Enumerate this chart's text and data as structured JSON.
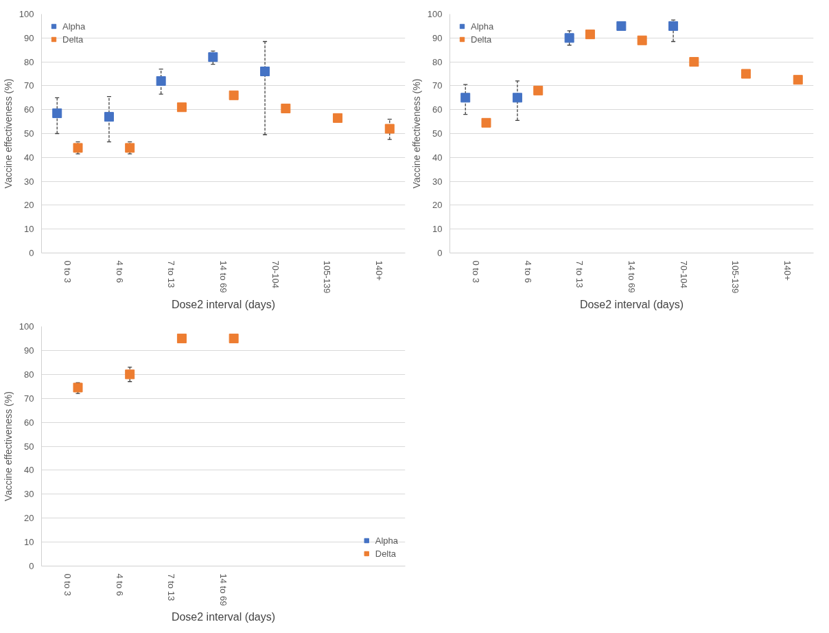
{
  "chart_data": [
    {
      "type": "scatter",
      "xlabel": "Dose2 interval (days)",
      "ylabel": "Vaccine effectiveness (%)",
      "categories": [
        "0 to 3",
        "4 to 6",
        "7 to 13",
        "14 to 69",
        "70-104",
        "105-139",
        "140+"
      ],
      "ylim": [
        0,
        100
      ],
      "yticks": [
        0,
        10,
        20,
        30,
        40,
        50,
        60,
        70,
        80,
        90,
        100
      ],
      "grid": "y",
      "legend": "top left",
      "marker": "square",
      "series": [
        {
          "name": "Alpha",
          "color": "#4472c4",
          "values": [
            58.5,
            57,
            72,
            82,
            76,
            null,
            null
          ],
          "errors": [
            [
              50,
              65
            ],
            [
              46.5,
              65.5
            ],
            [
              66.5,
              77
            ],
            [
              79,
              84.5
            ],
            [
              49.5,
              88.5
            ],
            null,
            null
          ]
        },
        {
          "name": "Delta",
          "color": "#ed7d31",
          "values": [
            44,
            44,
            61,
            66,
            60.5,
            56.5,
            52
          ],
          "errors": [
            [
              41.5,
              46.5
            ],
            [
              41.5,
              46.5
            ],
            null,
            null,
            null,
            null,
            [
              47.5,
              56
            ]
          ]
        }
      ]
    },
    {
      "type": "scatter",
      "xlabel": "Dose2 interval (days)",
      "ylabel": "Vaccine effectiveness (%)",
      "categories": [
        "0 to 3",
        "4 to 6",
        "7 to 13",
        "14 to 69",
        "70-104",
        "105-139",
        "140+"
      ],
      "ylim": [
        0,
        100
      ],
      "yticks": [
        0,
        10,
        20,
        30,
        40,
        50,
        60,
        70,
        80,
        90,
        100
      ],
      "grid": "y",
      "legend": "top left",
      "marker": "square",
      "series": [
        {
          "name": "Alpha",
          "color": "#4472c4",
          "values": [
            65,
            65,
            90,
            95,
            95,
            null,
            null
          ],
          "errors": [
            [
              58,
              70.5
            ],
            [
              55.5,
              72
            ],
            [
              87,
              93
            ],
            null,
            [
              88.5,
              97.5
            ],
            null,
            null
          ]
        },
        {
          "name": "Delta",
          "color": "#ed7d31",
          "values": [
            54.5,
            68,
            91.5,
            89,
            80,
            75,
            72.5
          ]
        }
      ]
    },
    {
      "type": "scatter",
      "xlabel": "Dose2 interval (days)",
      "ylabel": "Vaccine effectiveness (%)",
      "categories": [
        "0 to 3",
        "4 to 6",
        "7 to 13",
        "14 to 69",
        null,
        null,
        null
      ],
      "ylim": [
        0,
        100
      ],
      "yticks": [
        0,
        10,
        20,
        30,
        40,
        50,
        60,
        70,
        80,
        90,
        100
      ],
      "grid": "y",
      "legend": "bottom right",
      "marker": "square",
      "series": [
        {
          "name": "Alpha",
          "color": "#4472c4",
          "values": [
            null,
            null,
            null,
            null,
            null,
            null,
            null
          ]
        },
        {
          "name": "Delta",
          "color": "#ed7d31",
          "values": [
            74.5,
            80,
            95,
            95,
            null,
            null,
            null
          ],
          "errors": [
            [
              72,
              76.5
            ],
            [
              77,
              83
            ],
            null,
            null,
            null,
            null,
            null
          ]
        }
      ]
    }
  ]
}
